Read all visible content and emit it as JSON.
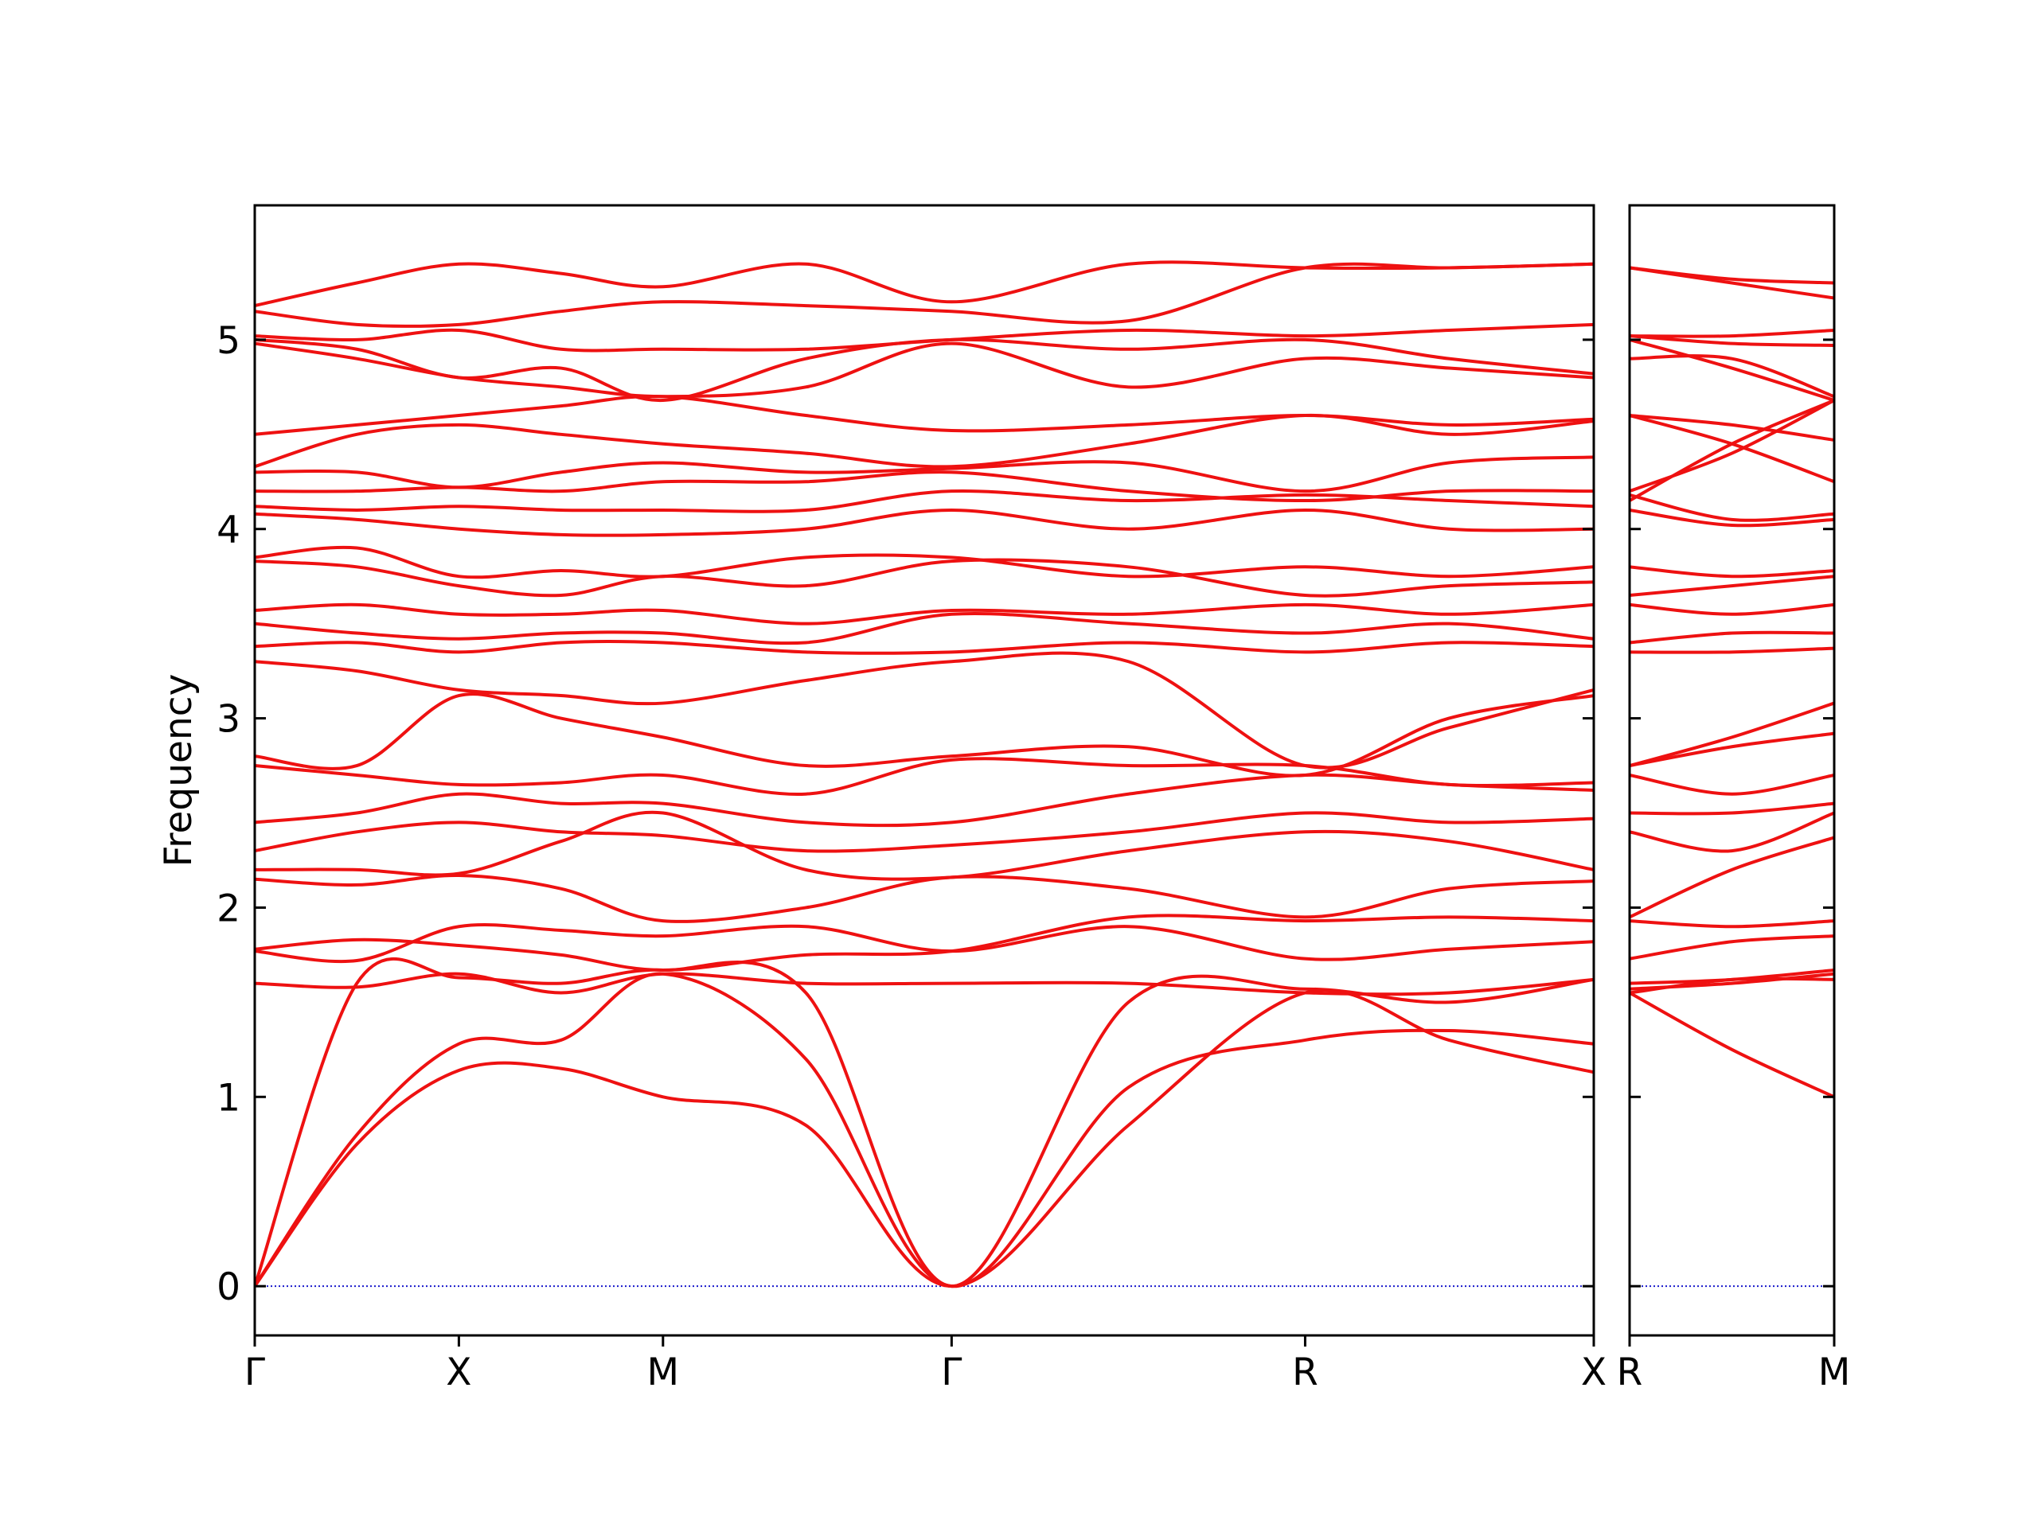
{
  "chart_data": [
    {
      "type": "line",
      "ylabel": "Frequency",
      "color": "#ee1111",
      "xlim": [
        0,
        6.56
      ],
      "ylim": [
        -0.26,
        5.71
      ],
      "xticks": [
        {
          "value": 0,
          "label": "Γ"
        },
        {
          "value": 1,
          "label": "X"
        },
        {
          "value": 2,
          "label": "M"
        },
        {
          "value": 3.414,
          "label": "Γ"
        },
        {
          "value": 5.146,
          "label": "R"
        },
        {
          "value": 6.56,
          "label": "X"
        }
      ],
      "yticks": [
        0,
        1,
        2,
        3,
        4,
        5
      ],
      "show_ytick_labels": true,
      "hlines": [
        0
      ],
      "hline_color": "#1a1acc",
      "x": [
        0,
        0.5,
        1,
        1.5,
        2,
        2.7,
        3.414,
        4.28,
        5.146,
        5.85,
        6.56
      ],
      "series": [
        {
          "values": [
            0,
            0.75,
            1.14,
            1.15,
            1.0,
            0.85,
            0,
            0.85,
            1.55,
            1.3,
            1.13
          ]
        },
        {
          "values": [
            0,
            0.8,
            1.28,
            1.3,
            1.65,
            1.2,
            0,
            1.05,
            1.3,
            1.35,
            1.28
          ]
        },
        {
          "values": [
            0,
            1.6,
            1.63,
            1.6,
            1.67,
            1.55,
            0,
            1.5,
            1.57,
            1.5,
            1.62
          ]
        },
        {
          "values": [
            1.6,
            1.58,
            1.65,
            1.55,
            1.65,
            1.6,
            1.6,
            1.6,
            1.55,
            1.55,
            1.62
          ]
        },
        {
          "values": [
            1.77,
            1.72,
            1.9,
            1.88,
            1.85,
            1.9,
            1.77,
            1.9,
            1.73,
            1.78,
            1.82
          ]
        },
        {
          "values": [
            1.78,
            1.83,
            1.8,
            1.75,
            1.67,
            1.75,
            1.77,
            1.95,
            1.93,
            1.95,
            1.93
          ]
        },
        {
          "values": [
            2.15,
            2.12,
            2.17,
            2.1,
            1.93,
            2.0,
            2.16,
            2.1,
            1.95,
            2.1,
            2.14
          ]
        },
        {
          "values": [
            2.2,
            2.2,
            2.18,
            2.35,
            2.5,
            2.2,
            2.16,
            2.3,
            2.4,
            2.35,
            2.2
          ]
        },
        {
          "values": [
            2.3,
            2.4,
            2.45,
            2.4,
            2.38,
            2.3,
            2.33,
            2.4,
            2.5,
            2.45,
            2.47
          ]
        },
        {
          "values": [
            2.45,
            2.5,
            2.6,
            2.55,
            2.55,
            2.45,
            2.45,
            2.6,
            2.7,
            2.65,
            2.62
          ]
        },
        {
          "values": [
            2.75,
            2.7,
            2.65,
            2.66,
            2.7,
            2.6,
            2.78,
            2.75,
            2.75,
            2.65,
            2.66
          ]
        },
        {
          "values": [
            2.8,
            2.75,
            3.12,
            3.0,
            2.9,
            2.75,
            2.8,
            2.85,
            2.7,
            3.0,
            3.12
          ]
        },
        {
          "values": [
            3.3,
            3.25,
            3.15,
            3.12,
            3.08,
            3.2,
            3.3,
            3.3,
            2.75,
            2.95,
            3.15
          ]
        },
        {
          "values": [
            3.38,
            3.4,
            3.35,
            3.4,
            3.4,
            3.35,
            3.35,
            3.4,
            3.35,
            3.4,
            3.38
          ]
        },
        {
          "values": [
            3.5,
            3.45,
            3.42,
            3.45,
            3.45,
            3.4,
            3.55,
            3.5,
            3.45,
            3.5,
            3.42
          ]
        },
        {
          "values": [
            3.57,
            3.6,
            3.55,
            3.55,
            3.57,
            3.5,
            3.57,
            3.55,
            3.6,
            3.55,
            3.6
          ]
        },
        {
          "values": [
            3.83,
            3.8,
            3.7,
            3.65,
            3.75,
            3.7,
            3.83,
            3.8,
            3.65,
            3.7,
            3.72
          ]
        },
        {
          "values": [
            3.85,
            3.9,
            3.75,
            3.78,
            3.75,
            3.85,
            3.85,
            3.75,
            3.8,
            3.75,
            3.8
          ]
        },
        {
          "values": [
            4.08,
            4.05,
            4.0,
            3.97,
            3.97,
            4.0,
            4.1,
            4.0,
            4.1,
            4.0,
            4.0
          ]
        },
        {
          "values": [
            4.12,
            4.1,
            4.12,
            4.1,
            4.1,
            4.1,
            4.2,
            4.15,
            4.18,
            4.15,
            4.12
          ]
        },
        {
          "values": [
            4.2,
            4.2,
            4.22,
            4.2,
            4.25,
            4.25,
            4.3,
            4.2,
            4.15,
            4.2,
            4.2
          ]
        },
        {
          "values": [
            4.3,
            4.3,
            4.22,
            4.3,
            4.35,
            4.3,
            4.32,
            4.35,
            4.2,
            4.35,
            4.38
          ]
        },
        {
          "values": [
            4.33,
            4.5,
            4.55,
            4.5,
            4.45,
            4.4,
            4.33,
            4.45,
            4.6,
            4.5,
            4.57
          ]
        },
        {
          "values": [
            4.5,
            4.55,
            4.6,
            4.65,
            4.7,
            4.6,
            4.52,
            4.55,
            4.6,
            4.55,
            4.58
          ]
        },
        {
          "values": [
            4.98,
            4.9,
            4.8,
            4.75,
            4.7,
            4.75,
            4.98,
            4.75,
            4.9,
            4.85,
            4.8
          ]
        },
        {
          "values": [
            5.0,
            4.95,
            4.8,
            4.85,
            4.68,
            4.9,
            5.0,
            4.95,
            5.0,
            4.9,
            4.82
          ]
        },
        {
          "values": [
            5.02,
            5.0,
            5.05,
            4.95,
            4.95,
            4.95,
            5.0,
            5.05,
            5.02,
            5.05,
            5.08
          ]
        },
        {
          "values": [
            5.15,
            5.08,
            5.08,
            5.15,
            5.2,
            5.18,
            5.15,
            5.1,
            5.38,
            5.38,
            5.4
          ]
        },
        {
          "values": [
            5.18,
            5.3,
            5.4,
            5.35,
            5.28,
            5.4,
            5.2,
            5.4,
            5.38,
            5.38,
            5.4
          ]
        }
      ]
    },
    {
      "type": "line",
      "color": "#ee1111",
      "xlim": [
        0,
        1
      ],
      "ylim": [
        -0.26,
        5.71
      ],
      "xticks": [
        {
          "value": 0,
          "label": "R"
        },
        {
          "value": 1,
          "label": "M"
        }
      ],
      "yticks": [
        0,
        1,
        2,
        3,
        4,
        5
      ],
      "show_ytick_labels": false,
      "hlines": [
        0
      ],
      "hline_color": "#1a1acc",
      "x": [
        0,
        0.5,
        1
      ],
      "series": [
        {
          "values": [
            1.55,
            1.25,
            1.0
          ]
        },
        {
          "values": [
            1.57,
            1.6,
            1.65
          ]
        },
        {
          "values": [
            1.6,
            1.62,
            1.67
          ]
        },
        {
          "values": [
            1.55,
            1.62,
            1.62
          ]
        },
        {
          "values": [
            1.73,
            1.82,
            1.85
          ]
        },
        {
          "values": [
            1.93,
            1.9,
            1.93
          ]
        },
        {
          "values": [
            1.95,
            2.2,
            2.37
          ]
        },
        {
          "values": [
            2.4,
            2.3,
            2.5
          ]
        },
        {
          "values": [
            2.5,
            2.5,
            2.55
          ]
        },
        {
          "values": [
            2.7,
            2.6,
            2.7
          ]
        },
        {
          "values": [
            2.75,
            2.85,
            2.92
          ]
        },
        {
          "values": [
            2.75,
            2.9,
            3.08
          ]
        },
        {
          "values": [
            3.35,
            3.35,
            3.37
          ]
        },
        {
          "values": [
            3.4,
            3.45,
            3.45
          ]
        },
        {
          "values": [
            3.6,
            3.55,
            3.6
          ]
        },
        {
          "values": [
            3.65,
            3.7,
            3.75
          ]
        },
        {
          "values": [
            3.8,
            3.75,
            3.78
          ]
        },
        {
          "values": [
            4.1,
            4.02,
            4.05
          ]
        },
        {
          "values": [
            4.18,
            4.05,
            4.08
          ]
        },
        {
          "values": [
            4.15,
            4.45,
            4.68
          ]
        },
        {
          "values": [
            4.2,
            4.4,
            4.68
          ]
        },
        {
          "values": [
            4.6,
            4.55,
            4.47
          ]
        },
        {
          "values": [
            4.6,
            4.45,
            4.25
          ]
        },
        {
          "values": [
            4.9,
            4.9,
            4.7
          ]
        },
        {
          "values": [
            5.0,
            4.85,
            4.68
          ]
        },
        {
          "values": [
            5.02,
            5.02,
            5.05
          ]
        },
        {
          "values": [
            5.02,
            4.98,
            4.97
          ]
        },
        {
          "values": [
            5.38,
            5.3,
            5.22
          ]
        },
        {
          "values": [
            5.38,
            5.32,
            5.3
          ]
        }
      ]
    }
  ]
}
